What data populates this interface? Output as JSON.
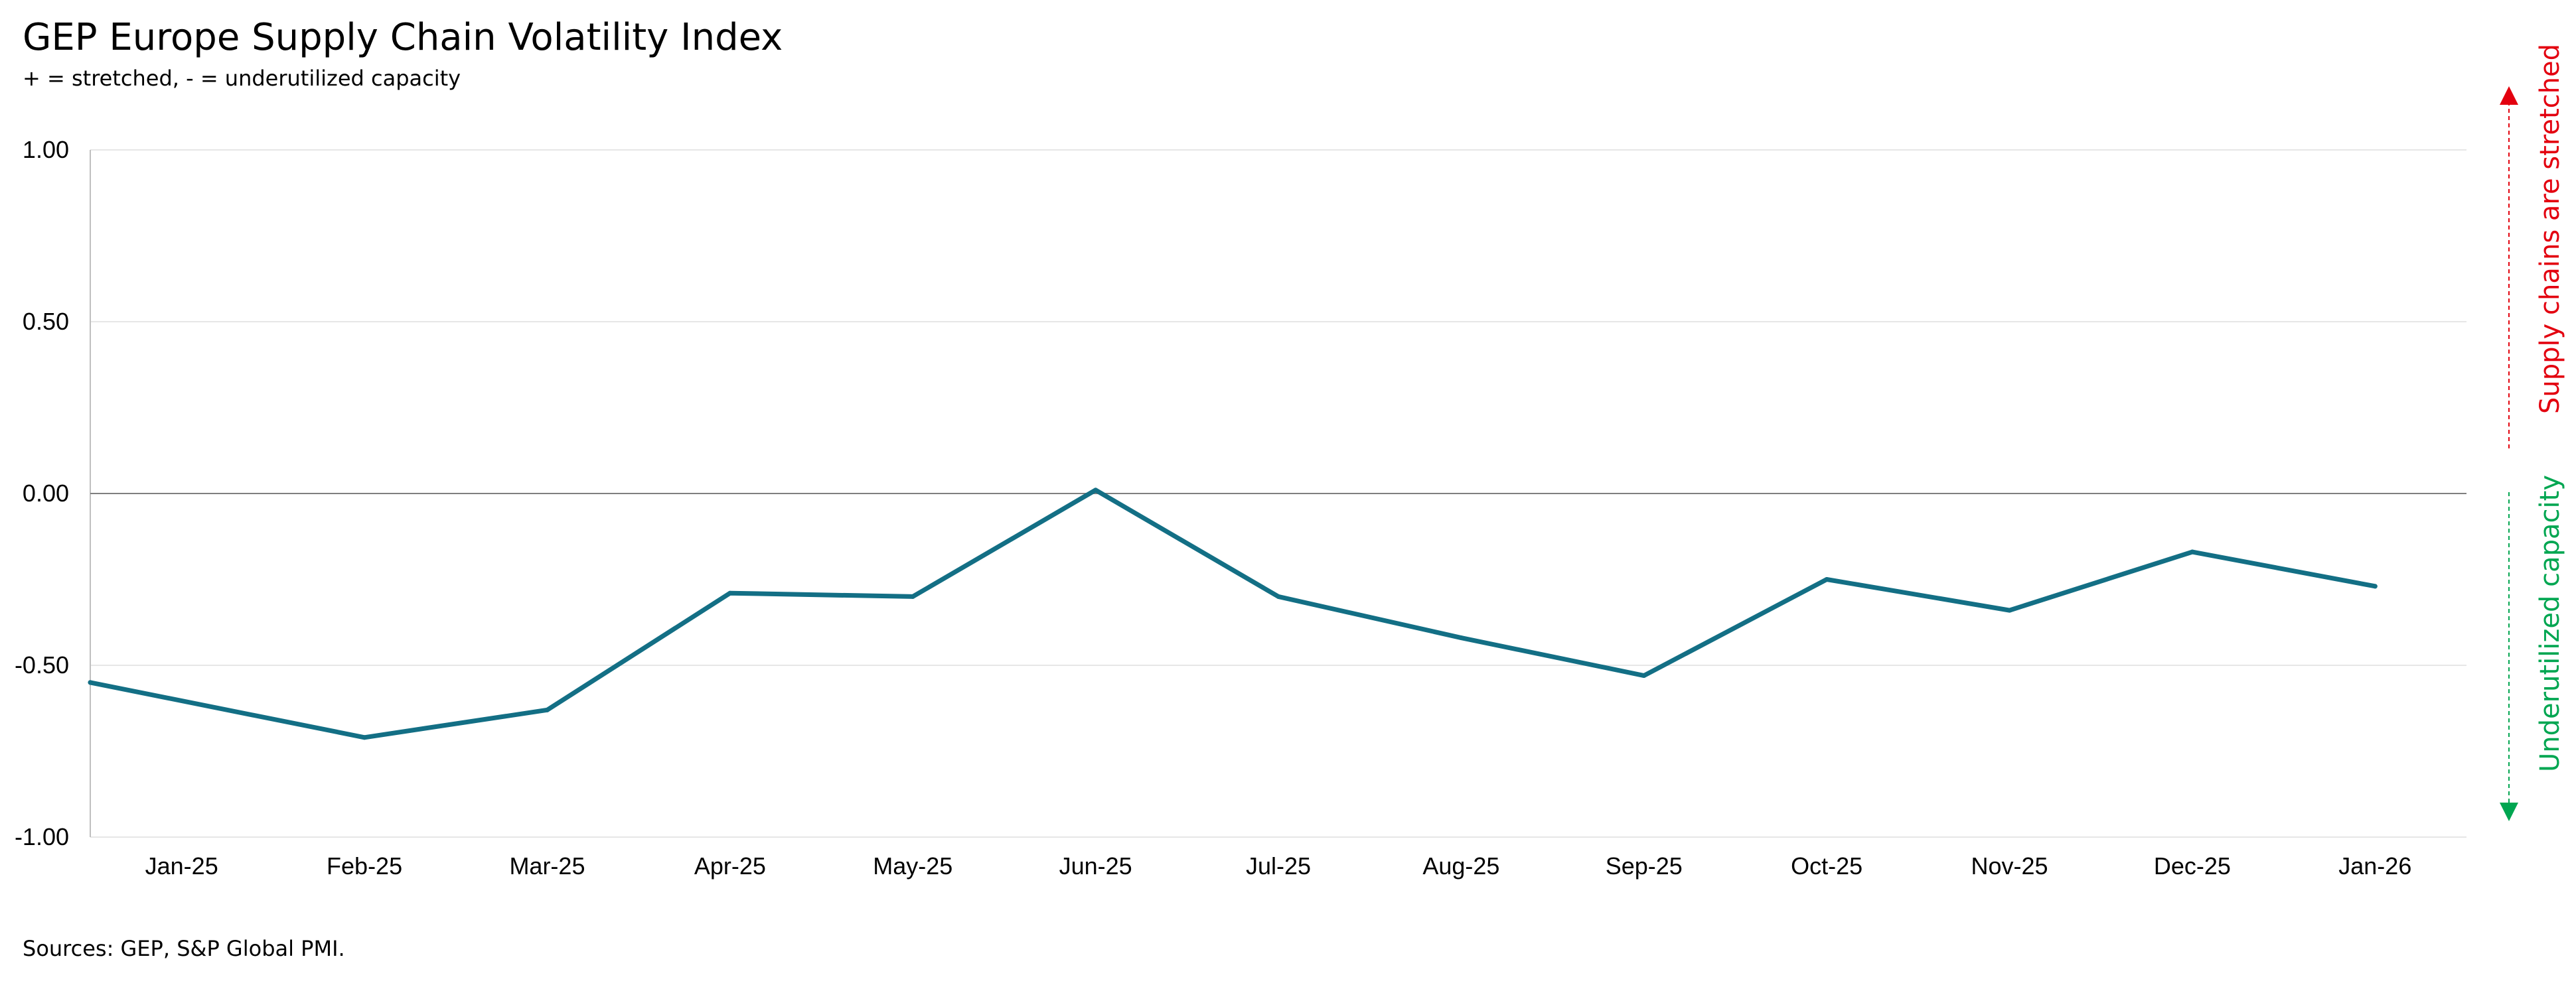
{
  "title": "GEP Europe Supply Chain Volatility Index",
  "subtitle": "+ = stretched, - = underutilized capacity",
  "source": "Sources: GEP, S&P Global PMI.",
  "side_labels": {
    "top": "Supply chains are stretched",
    "bottom": "Underutilized capacity"
  },
  "colors": {
    "line": "#136f85",
    "top_label": "#e3000f",
    "bottom_label": "#00a651",
    "zero_line": "#7f7f7f",
    "grid": "#e6e6e6"
  },
  "chart_data": {
    "type": "line",
    "title": "GEP Europe Supply Chain Volatility Index",
    "subtitle": "+ = stretched, - = underutilized capacity",
    "categories": [
      "Jan-25",
      "Feb-25",
      "Mar-25",
      "Apr-25",
      "May-25",
      "Jun-25",
      "Jul-25",
      "Aug-25",
      "Sep-25",
      "Oct-25",
      "Nov-25",
      "Dec-25",
      "Jan-26"
    ],
    "series": [
      {
        "values": [
          -0.55,
          -0.71,
          -0.63,
          -0.29,
          -0.3,
          0.01,
          -0.3,
          -0.42,
          -0.53,
          -0.25,
          -0.34,
          -0.17,
          -0.27
        ]
      }
    ],
    "yticks": [
      "1.00",
      "0.50",
      "0.00",
      "-0.50",
      "-1.00"
    ],
    "ylim": [
      -1.0,
      1.0
    ],
    "grid": true,
    "legend": "none"
  }
}
